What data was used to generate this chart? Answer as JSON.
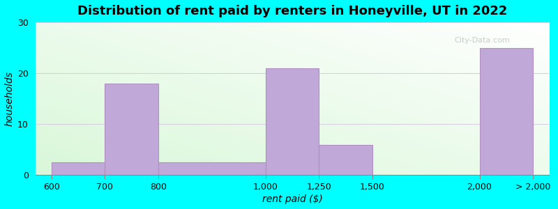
{
  "title": "Distribution of rent paid by renters in Honeyville, UT in 2022",
  "xlabel": "rent paid ($)",
  "ylabel": "households",
  "bar_lefts": [
    0,
    1,
    2,
    4,
    5,
    6,
    8
  ],
  "bar_rights": [
    1,
    2,
    4,
    5,
    6,
    8,
    9
  ],
  "bar_heights": [
    2.5,
    18.0,
    2.5,
    21.0,
    6.0,
    0.0,
    25.0
  ],
  "bar_color": "#C0A8D8",
  "bar_edgecolor": "#B090C0",
  "xtick_positions": [
    0,
    1,
    2,
    4,
    5,
    6,
    8,
    9
  ],
  "xtick_labels": [
    "600",
    "700",
    "800",
    "1,000",
    "1,250",
    "1,500",
    "2,000",
    "> 2,000"
  ],
  "ylim": [
    0,
    30
  ],
  "yticks": [
    0,
    10,
    20,
    30
  ],
  "outer_bg": "#00FFFF",
  "grid_color": "#D8D0E0",
  "title_fontsize": 13,
  "axis_label_fontsize": 10,
  "tick_fontsize": 9,
  "watermark_text": "City-Data.com"
}
